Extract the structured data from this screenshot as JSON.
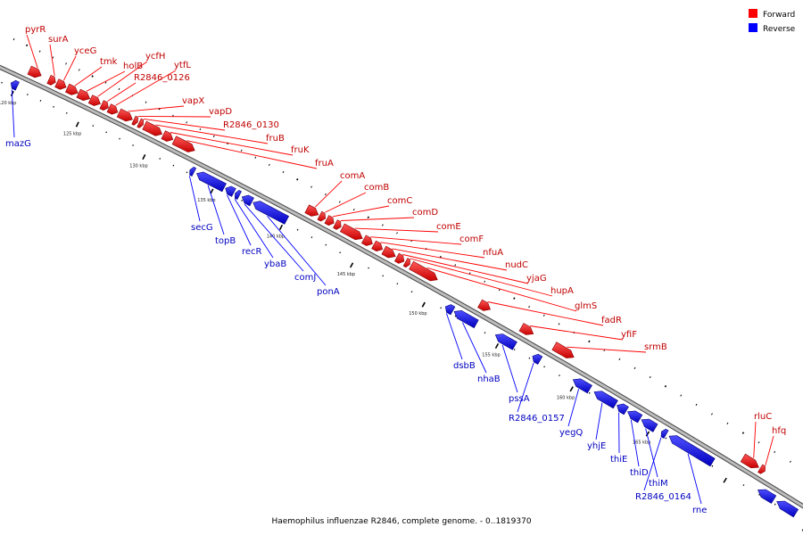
{
  "legend": {
    "forward": {
      "label": "Forward",
      "color": "#ff0000"
    },
    "reverse": {
      "label": "Reverse",
      "color": "#0000ff"
    }
  },
  "caption": "Haemophilus influenzae R2846, complete genome. - 0..1819370",
  "ticks": [
    {
      "pos": 120,
      "label": "120 kbp"
    },
    {
      "pos": 125,
      "label": "125 kbp"
    },
    {
      "pos": 130,
      "label": "130 kbp"
    },
    {
      "pos": 135,
      "label": "135 kbp"
    },
    {
      "pos": 140,
      "label": "140 kbp"
    },
    {
      "pos": 145,
      "label": "145 kbp"
    },
    {
      "pos": 150,
      "label": "150 kbp"
    },
    {
      "pos": 155,
      "label": "155 kbp"
    },
    {
      "pos": 160,
      "label": "160 kbp"
    },
    {
      "pos": 165,
      "label": "165 kbp"
    }
  ],
  "genes": [
    {
      "name": "mazG",
      "strand": "reverse",
      "start": 119.6,
      "end": 120.1
    },
    {
      "name": "pyrR",
      "strand": "forward",
      "start": 120.4,
      "end": 121.3
    },
    {
      "name": "surA",
      "strand": "forward",
      "start": 121.9,
      "end": 122.4
    },
    {
      "name": "yceG",
      "strand": "forward",
      "start": 122.5,
      "end": 123.2
    },
    {
      "name": "tmk",
      "strand": "forward",
      "start": 123.3,
      "end": 124.1
    },
    {
      "name": "holB",
      "strand": "forward",
      "start": 124.15,
      "end": 125.0
    },
    {
      "name": "ycfH",
      "strand": "forward",
      "start": 125.05,
      "end": 125.8
    },
    {
      "name": "R2846_0126",
      "strand": "forward",
      "start": 125.9,
      "end": 126.4
    },
    {
      "name": "ytfL",
      "strand": "forward",
      "start": 126.45,
      "end": 127.1
    },
    {
      "name": "vapX",
      "strand": "forward",
      "start": 127.2,
      "end": 128.2
    },
    {
      "name": "vapD",
      "strand": "forward",
      "start": 128.3,
      "end": 128.6
    },
    {
      "name": "R2846_0130",
      "strand": "forward",
      "start": 128.7,
      "end": 129.0
    },
    {
      "name": "fruB",
      "strand": "forward",
      "start": 129.1,
      "end": 130.4
    },
    {
      "name": "fruK",
      "strand": "forward",
      "start": 130.5,
      "end": 131.2
    },
    {
      "name": "fruA",
      "strand": "forward",
      "start": 131.3,
      "end": 132.8
    },
    {
      "name": "secG",
      "strand": "reverse",
      "start": 133.1,
      "end": 133.4
    },
    {
      "name": "topB",
      "strand": "reverse",
      "start": 133.6,
      "end": 135.6
    },
    {
      "name": "recR",
      "strand": "reverse",
      "start": 135.7,
      "end": 136.3
    },
    {
      "name": "ybaB",
      "strand": "reverse",
      "start": 136.4,
      "end": 136.7
    },
    {
      "name": "comJ",
      "strand": "reverse",
      "start": 136.9,
      "end": 137.6
    },
    {
      "name": "ponA",
      "strand": "reverse",
      "start": 137.7,
      "end": 140.1
    },
    {
      "name": "comA",
      "strand": "forward",
      "start": 140.9,
      "end": 141.7
    },
    {
      "name": "comB",
      "strand": "forward",
      "start": 141.8,
      "end": 142.2
    },
    {
      "name": "comC",
      "strand": "forward",
      "start": 142.3,
      "end": 142.8
    },
    {
      "name": "comD",
      "strand": "forward",
      "start": 142.9,
      "end": 143.3
    },
    {
      "name": "comE",
      "strand": "forward",
      "start": 143.4,
      "end": 144.8
    },
    {
      "name": "comF",
      "strand": "forward",
      "start": 144.9,
      "end": 145.5
    },
    {
      "name": "nfuA",
      "strand": "forward",
      "start": 145.6,
      "end": 146.2
    },
    {
      "name": "nudC",
      "strand": "forward",
      "start": 146.3,
      "end": 147.1
    },
    {
      "name": "yjaG",
      "strand": "forward",
      "start": 147.2,
      "end": 147.7
    },
    {
      "name": "hupA",
      "strand": "forward",
      "start": 147.8,
      "end": 148.1
    },
    {
      "name": "glmS",
      "strand": "forward",
      "start": 148.2,
      "end": 150.0
    },
    {
      "name": "dsbB",
      "strand": "reverse",
      "start": 151.2,
      "end": 151.7
    },
    {
      "name": "nhaB",
      "strand": "reverse",
      "start": 151.8,
      "end": 153.3
    },
    {
      "name": "fadR",
      "strand": "forward",
      "start": 152.9,
      "end": 153.6
    },
    {
      "name": "pssA",
      "strand": "reverse",
      "start": 154.6,
      "end": 155.9
    },
    {
      "name": "yfiF",
      "strand": "forward",
      "start": 155.7,
      "end": 156.5
    },
    {
      "name": "R2846_0157",
      "strand": "reverse",
      "start": 157.1,
      "end": 157.6
    },
    {
      "name": "srmB",
      "strand": "forward",
      "start": 157.9,
      "end": 159.2
    },
    {
      "name": "yegQ",
      "strand": "reverse",
      "start": 159.8,
      "end": 160.9
    },
    {
      "name": "yhjE",
      "strand": "reverse",
      "start": 161.2,
      "end": 162.6
    },
    {
      "name": "thiE",
      "strand": "reverse",
      "start": 162.7,
      "end": 163.3
    },
    {
      "name": "thiD",
      "strand": "reverse",
      "start": 163.4,
      "end": 164.2
    },
    {
      "name": "thiM",
      "strand": "reverse",
      "start": 164.3,
      "end": 165.2
    },
    {
      "name": "R2846_0164",
      "strand": "reverse",
      "start": 165.6,
      "end": 165.9
    },
    {
      "name": "rne",
      "strand": "reverse",
      "start": 166.1,
      "end": 168.9
    },
    {
      "name": "rluC",
      "strand": "forward",
      "start": 170.2,
      "end": 171.2
    },
    {
      "name": "hfq",
      "strand": "forward",
      "start": 171.3,
      "end": 171.6
    },
    {
      "name": "",
      "strand": "reverse",
      "start": 171.8,
      "end": 172.8
    },
    {
      "name": "",
      "strand": "reverse",
      "start": 173.0,
      "end": 174.2
    }
  ]
}
